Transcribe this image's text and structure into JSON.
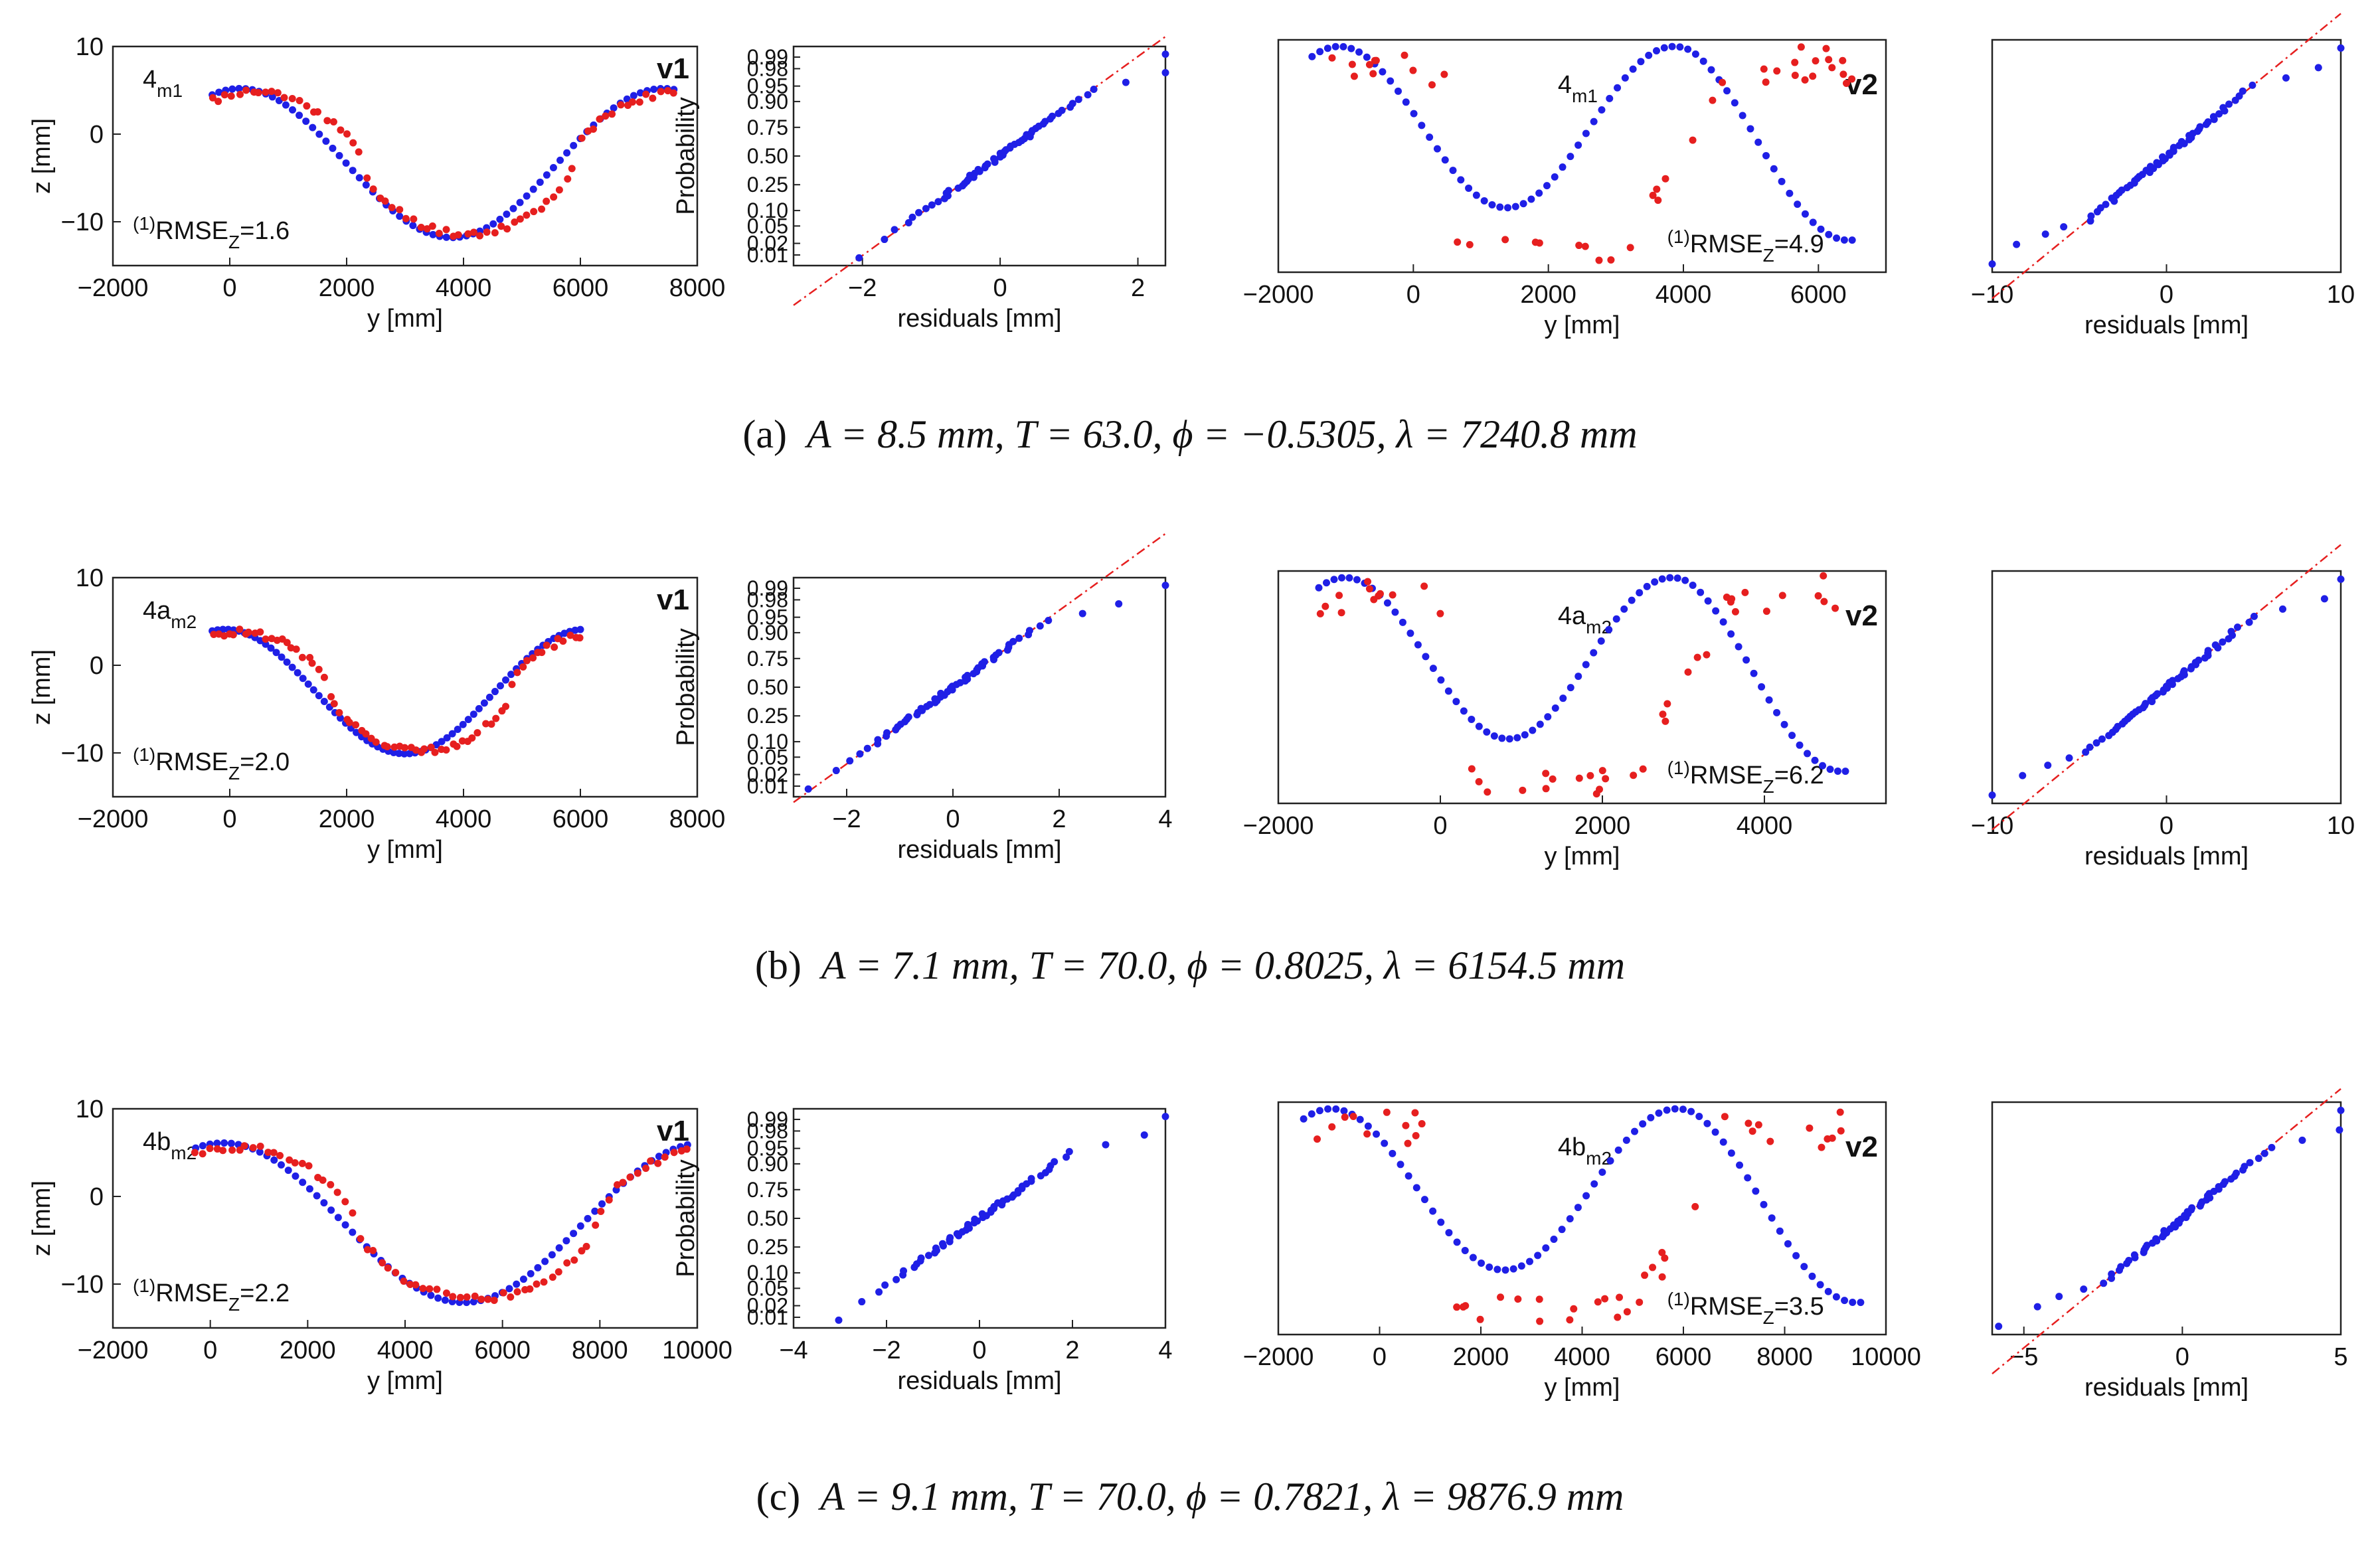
{
  "figure": {
    "rows": [
      {
        "caption": {
          "label": "(a)",
          "text": "A = 8.5 mm, T = 63.0, ϕ = −0.5305, λ = 7240.8 mm"
        },
        "fit": {
          "A": 8.5,
          "lambda": 7240.8,
          "center": 3800,
          "offset": -3.3
        }
      },
      {
        "caption": {
          "label": "(b)",
          "text": "A = 7.1 mm, T = 70.0, ϕ = 0.8025, λ = 6154.5 mm"
        },
        "fit": {
          "A": 7.1,
          "lambda": 6154.5,
          "center": 3000,
          "offset": -3.0
        }
      },
      {
        "caption": {
          "label": "(c)",
          "text": "A = 9.1 mm, T = 70.0, ϕ = 0.7821, λ = 9876.9 mm"
        },
        "fit": {
          "A": 9.1,
          "lambda": 9876.9,
          "center": 5200,
          "offset": -3.0
        }
      }
    ]
  },
  "chart_data": [
    {
      "type": "scatter",
      "panel": "row-a-v1",
      "title": "",
      "label": "4",
      "label_sub": "m1",
      "tag": "v1",
      "annotation_sup": "(1)",
      "annotation_main": "RMSE",
      "annotation_sub": "Z",
      "annotation_value": "=1.6",
      "xlabel": "y [mm]",
      "ylabel": "z [mm]",
      "xlim": [
        -2000,
        8000
      ],
      "ylim": [
        -15,
        10
      ],
      "xticks": [
        "-2000",
        "0",
        "2000",
        "4000",
        "6000",
        "8000"
      ],
      "yticks": [
        "-10",
        "0",
        "10"
      ],
      "series": [
        {
          "name": "model",
          "color": "#1f1fe6",
          "x_range": [
            -300,
            7600
          ]
        },
        {
          "name": "measured",
          "color": "#e61f1f",
          "x_range": [
            -300,
            7600
          ]
        }
      ]
    },
    {
      "type": "scatter",
      "panel": "row-a-qq1",
      "title": "",
      "xlabel": "residuals [mm]",
      "ylabel": "Probability",
      "xlim": [
        -3,
        2.4
      ],
      "xticks": [
        "-2",
        "0",
        "2"
      ],
      "yticks": [
        "0.01",
        "0.02",
        "0.05",
        "0.10",
        "0.25",
        "0.50",
        "0.75",
        "0.90",
        "0.95",
        "0.98",
        "0.99"
      ],
      "series": [
        {
          "name": "residuals",
          "color": "#1f1fe6"
        },
        {
          "name": "reference",
          "color": "#e61f1f"
        }
      ]
    },
    {
      "type": "scatter",
      "panel": "row-a-v2",
      "title": "",
      "label": "4",
      "label_sub": "m1",
      "tag": "v2",
      "annotation_sup": "(1)",
      "annotation_main": "RMSE",
      "annotation_sub": "Z",
      "annotation_value": "=4.9",
      "xlabel": "y [mm]",
      "xlim": [
        -2000,
        7000
      ],
      "xticks": [
        "-2000",
        "0",
        "2000",
        "4000",
        "6000"
      ],
      "series": [
        {
          "name": "model",
          "color": "#1f1fe6"
        },
        {
          "name": "measured",
          "color": "#e61f1f"
        }
      ]
    },
    {
      "type": "scatter",
      "panel": "row-a-qq2",
      "title": "",
      "xlabel": "residuals [mm]",
      "xlim": [
        -10,
        10
      ],
      "xticks": [
        "-10",
        "0",
        "10"
      ],
      "series": [
        {
          "name": "residuals",
          "color": "#1f1fe6"
        },
        {
          "name": "reference",
          "color": "#e61f1f"
        }
      ]
    },
    {
      "type": "scatter",
      "panel": "row-b-v1",
      "title": "",
      "label": "4a",
      "label_sub": "m2",
      "tag": "v1",
      "annotation_sup": "(1)",
      "annotation_main": "RMSE",
      "annotation_sub": "Z",
      "annotation_value": "=2.0",
      "xlabel": "y [mm]",
      "ylabel": "z [mm]",
      "xlim": [
        -2000,
        8000
      ],
      "ylim": [
        -15,
        10
      ],
      "xticks": [
        "-2000",
        "0",
        "2000",
        "4000",
        "6000",
        "8000"
      ],
      "yticks": [
        "-10",
        "0",
        "10"
      ],
      "series": [
        {
          "name": "model",
          "color": "#1f1fe6",
          "x_range": [
            -300,
            6000
          ]
        },
        {
          "name": "measured",
          "color": "#e61f1f",
          "x_range": [
            -300,
            6000
          ]
        }
      ]
    },
    {
      "type": "scatter",
      "panel": "row-b-qq1",
      "title": "",
      "xlabel": "residuals [mm]",
      "ylabel": "Probability",
      "xlim": [
        -3,
        4
      ],
      "xticks": [
        "-2",
        "0",
        "2",
        "4"
      ],
      "yticks": [
        "0.01",
        "0.02",
        "0.05",
        "0.10",
        "0.25",
        "0.50",
        "0.75",
        "0.90",
        "0.95",
        "0.98",
        "0.99"
      ],
      "series": [
        {
          "name": "residuals",
          "color": "#1f1fe6"
        },
        {
          "name": "reference",
          "color": "#e61f1f"
        }
      ]
    },
    {
      "type": "scatter",
      "panel": "row-b-v2",
      "title": "",
      "label": "4a",
      "label_sub": "m2",
      "tag": "v2",
      "annotation_sup": "(1)",
      "annotation_main": "RMSE",
      "annotation_sub": "Z",
      "annotation_value": "=6.2",
      "xlabel": "y [mm]",
      "xlim": [
        -2000,
        5500
      ],
      "xticks": [
        "-2000",
        "0",
        "2000",
        "4000"
      ],
      "series": [
        {
          "name": "model",
          "color": "#1f1fe6"
        },
        {
          "name": "measured",
          "color": "#e61f1f"
        }
      ]
    },
    {
      "type": "scatter",
      "panel": "row-b-qq2",
      "title": "",
      "xlabel": "residuals [mm]",
      "xlim": [
        -10,
        10
      ],
      "xticks": [
        "-10",
        "0",
        "10"
      ],
      "series": [
        {
          "name": "residuals",
          "color": "#1f1fe6"
        },
        {
          "name": "reference",
          "color": "#e61f1f"
        }
      ]
    },
    {
      "type": "scatter",
      "panel": "row-c-v1",
      "title": "",
      "label": "4b",
      "label_sub": "m2",
      "tag": "v1",
      "annotation_sup": "(1)",
      "annotation_main": "RMSE",
      "annotation_sub": "Z",
      "annotation_value": "=2.2",
      "xlabel": "y [mm]",
      "ylabel": "z [mm]",
      "xlim": [
        -2000,
        10000
      ],
      "ylim": [
        -15,
        10
      ],
      "xticks": [
        "-2000",
        "0",
        "2000",
        "4000",
        "6000",
        "8000",
        "10000"
      ],
      "yticks": [
        "-10",
        "0",
        "10"
      ],
      "series": [
        {
          "name": "model",
          "color": "#1f1fe6",
          "x_range": [
            -300,
            9800
          ]
        },
        {
          "name": "measured",
          "color": "#e61f1f",
          "x_range": [
            -300,
            9800
          ]
        }
      ]
    },
    {
      "type": "scatter",
      "panel": "row-c-qq1",
      "title": "",
      "xlabel": "residuals [mm]",
      "ylabel": "Probability",
      "xlim": [
        -4,
        4
      ],
      "xticks": [
        "-4",
        "-2",
        "0",
        "2",
        "4"
      ],
      "yticks": [
        "0.01",
        "0.02",
        "0.05",
        "0.10",
        "0.25",
        "0.50",
        "0.75",
        "0.90",
        "0.95",
        "0.98",
        "0.99"
      ],
      "series": [
        {
          "name": "residuals",
          "color": "#1f1fe6"
        }
      ]
    },
    {
      "type": "scatter",
      "panel": "row-c-v2",
      "title": "",
      "label": "4b",
      "label_sub": "m2",
      "tag": "v2",
      "annotation_sup": "(1)",
      "annotation_main": "RMSE",
      "annotation_sub": "Z",
      "annotation_value": "=3.5",
      "xlabel": "y [mm]",
      "xlim": [
        -2000,
        10000
      ],
      "xticks": [
        "-2000",
        "0",
        "2000",
        "4000",
        "6000",
        "8000",
        "10000"
      ],
      "series": [
        {
          "name": "model",
          "color": "#1f1fe6"
        },
        {
          "name": "measured",
          "color": "#e61f1f"
        }
      ]
    },
    {
      "type": "scatter",
      "panel": "row-c-qq2",
      "title": "",
      "xlabel": "residuals [mm]",
      "xlim": [
        -6,
        5
      ],
      "xticks": [
        "-5",
        "0",
        "5"
      ],
      "series": [
        {
          "name": "residuals",
          "color": "#1f1fe6"
        },
        {
          "name": "reference",
          "color": "#e61f1f"
        }
      ]
    }
  ]
}
